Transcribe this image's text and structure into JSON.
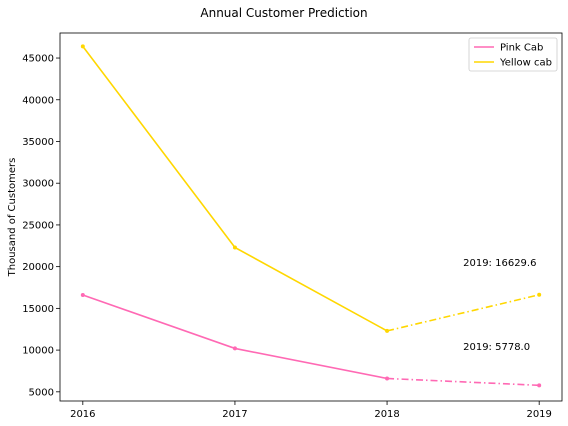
{
  "chart_data": {
    "type": "line",
    "title": "Annual Customer Prediction",
    "xlabel": "",
    "ylabel": "Thousand of Customers",
    "x": [
      2016,
      2017,
      2018,
      2019
    ],
    "xticks": [
      "2016",
      "2017",
      "2018",
      "2019"
    ],
    "yticks": [
      5000,
      10000,
      15000,
      20000,
      25000,
      30000,
      35000,
      40000,
      45000
    ],
    "xlim": [
      2015.85,
      2019.15
    ],
    "ylim": [
      3900,
      48000
    ],
    "grid": false,
    "legend_position": "top-right",
    "series": [
      {
        "name": "Pink Cab",
        "color": "#ff69b4",
        "values": [
          16600,
          10200,
          6600,
          5778.0
        ],
        "predicted_from_index": 2
      },
      {
        "name": "Yellow cab",
        "color": "#ffd700",
        "values": [
          46400,
          22300,
          12300,
          16629.6
        ],
        "predicted_from_index": 2
      }
    ],
    "annotations": [
      {
        "text": "2019: 16629.6",
        "x": 2018.5,
        "y": 20100
      },
      {
        "text": "2019: 5778.0",
        "x": 2018.5,
        "y": 10000
      }
    ]
  }
}
